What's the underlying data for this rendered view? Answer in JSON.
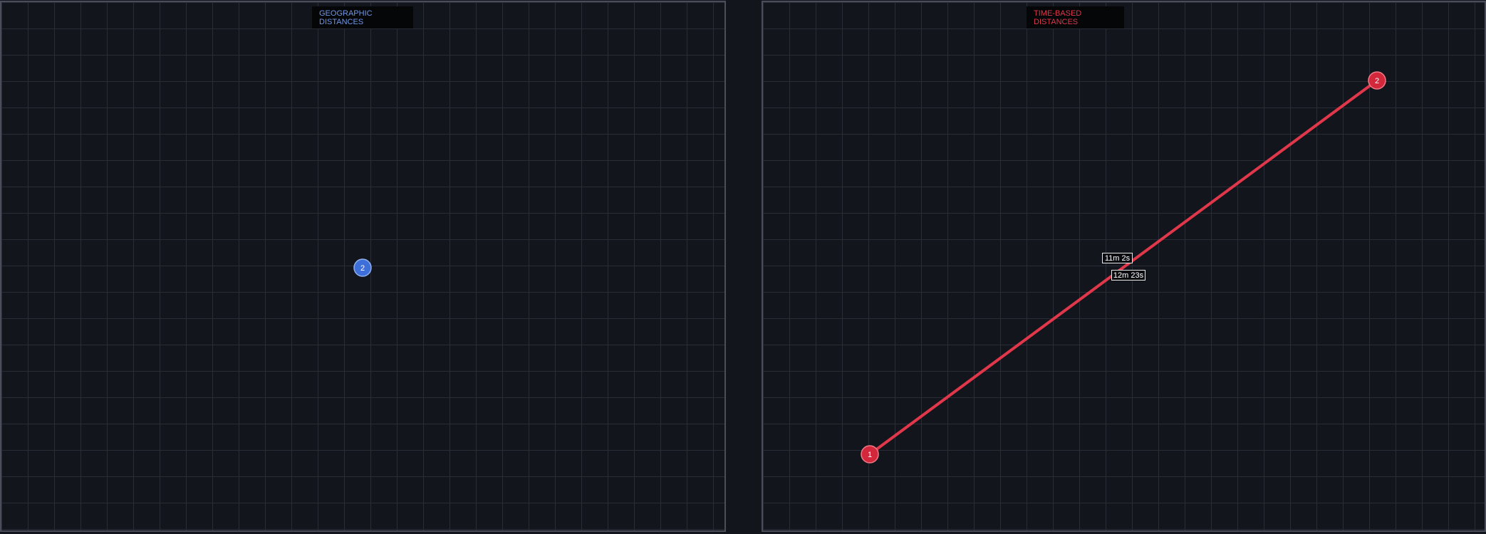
{
  "panels": {
    "geographic": {
      "title": "GEOGRAPHIC DISTANCES",
      "accent": "#6f97e8",
      "nodes": [
        {
          "id": "2",
          "label": "2",
          "color": "#3e6fd8"
        }
      ]
    },
    "time_based": {
      "title": "TIME-BASED DISTANCES",
      "accent": "#e0374a",
      "nodes": [
        {
          "id": "1",
          "label": "1",
          "color": "#d3283c"
        },
        {
          "id": "2",
          "label": "2",
          "color": "#d3283c"
        }
      ],
      "edges": [
        {
          "from": "1",
          "to": "2",
          "color": "#e0374a",
          "labels": [
            "11m 2s",
            "12m 23s"
          ]
        }
      ]
    }
  }
}
